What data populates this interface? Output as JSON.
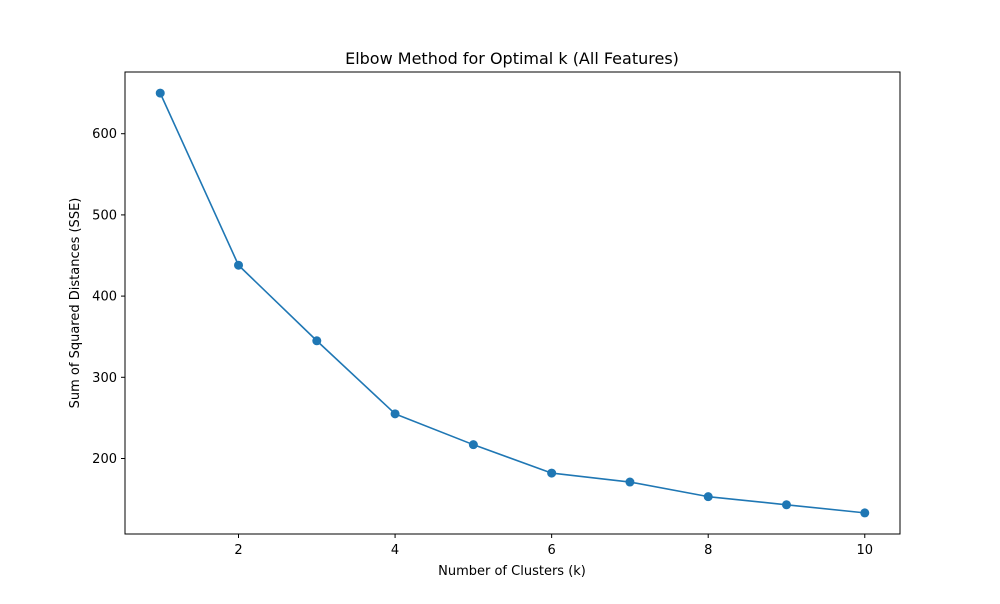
{
  "chart_data": {
    "type": "line",
    "title": "Elbow Method for Optimal k (All Features)",
    "xlabel": "Number of Clusters (k)",
    "ylabel": "Sum of Squared Distances (SSE)",
    "xlim": [
      0.55,
      10.45
    ],
    "ylim": [
      107,
      676
    ],
    "xticks": [
      2,
      4,
      6,
      8,
      10
    ],
    "yticks": [
      200,
      300,
      400,
      500,
      600
    ],
    "grid": false,
    "legend": "none",
    "series": [
      {
        "color": "#1f77b4",
        "marker": "circle",
        "x": [
          1,
          2,
          3,
          4,
          5,
          6,
          7,
          8,
          9,
          10
        ],
        "y": [
          650,
          438,
          345,
          255,
          217,
          182,
          171,
          153,
          143,
          133
        ]
      }
    ]
  }
}
